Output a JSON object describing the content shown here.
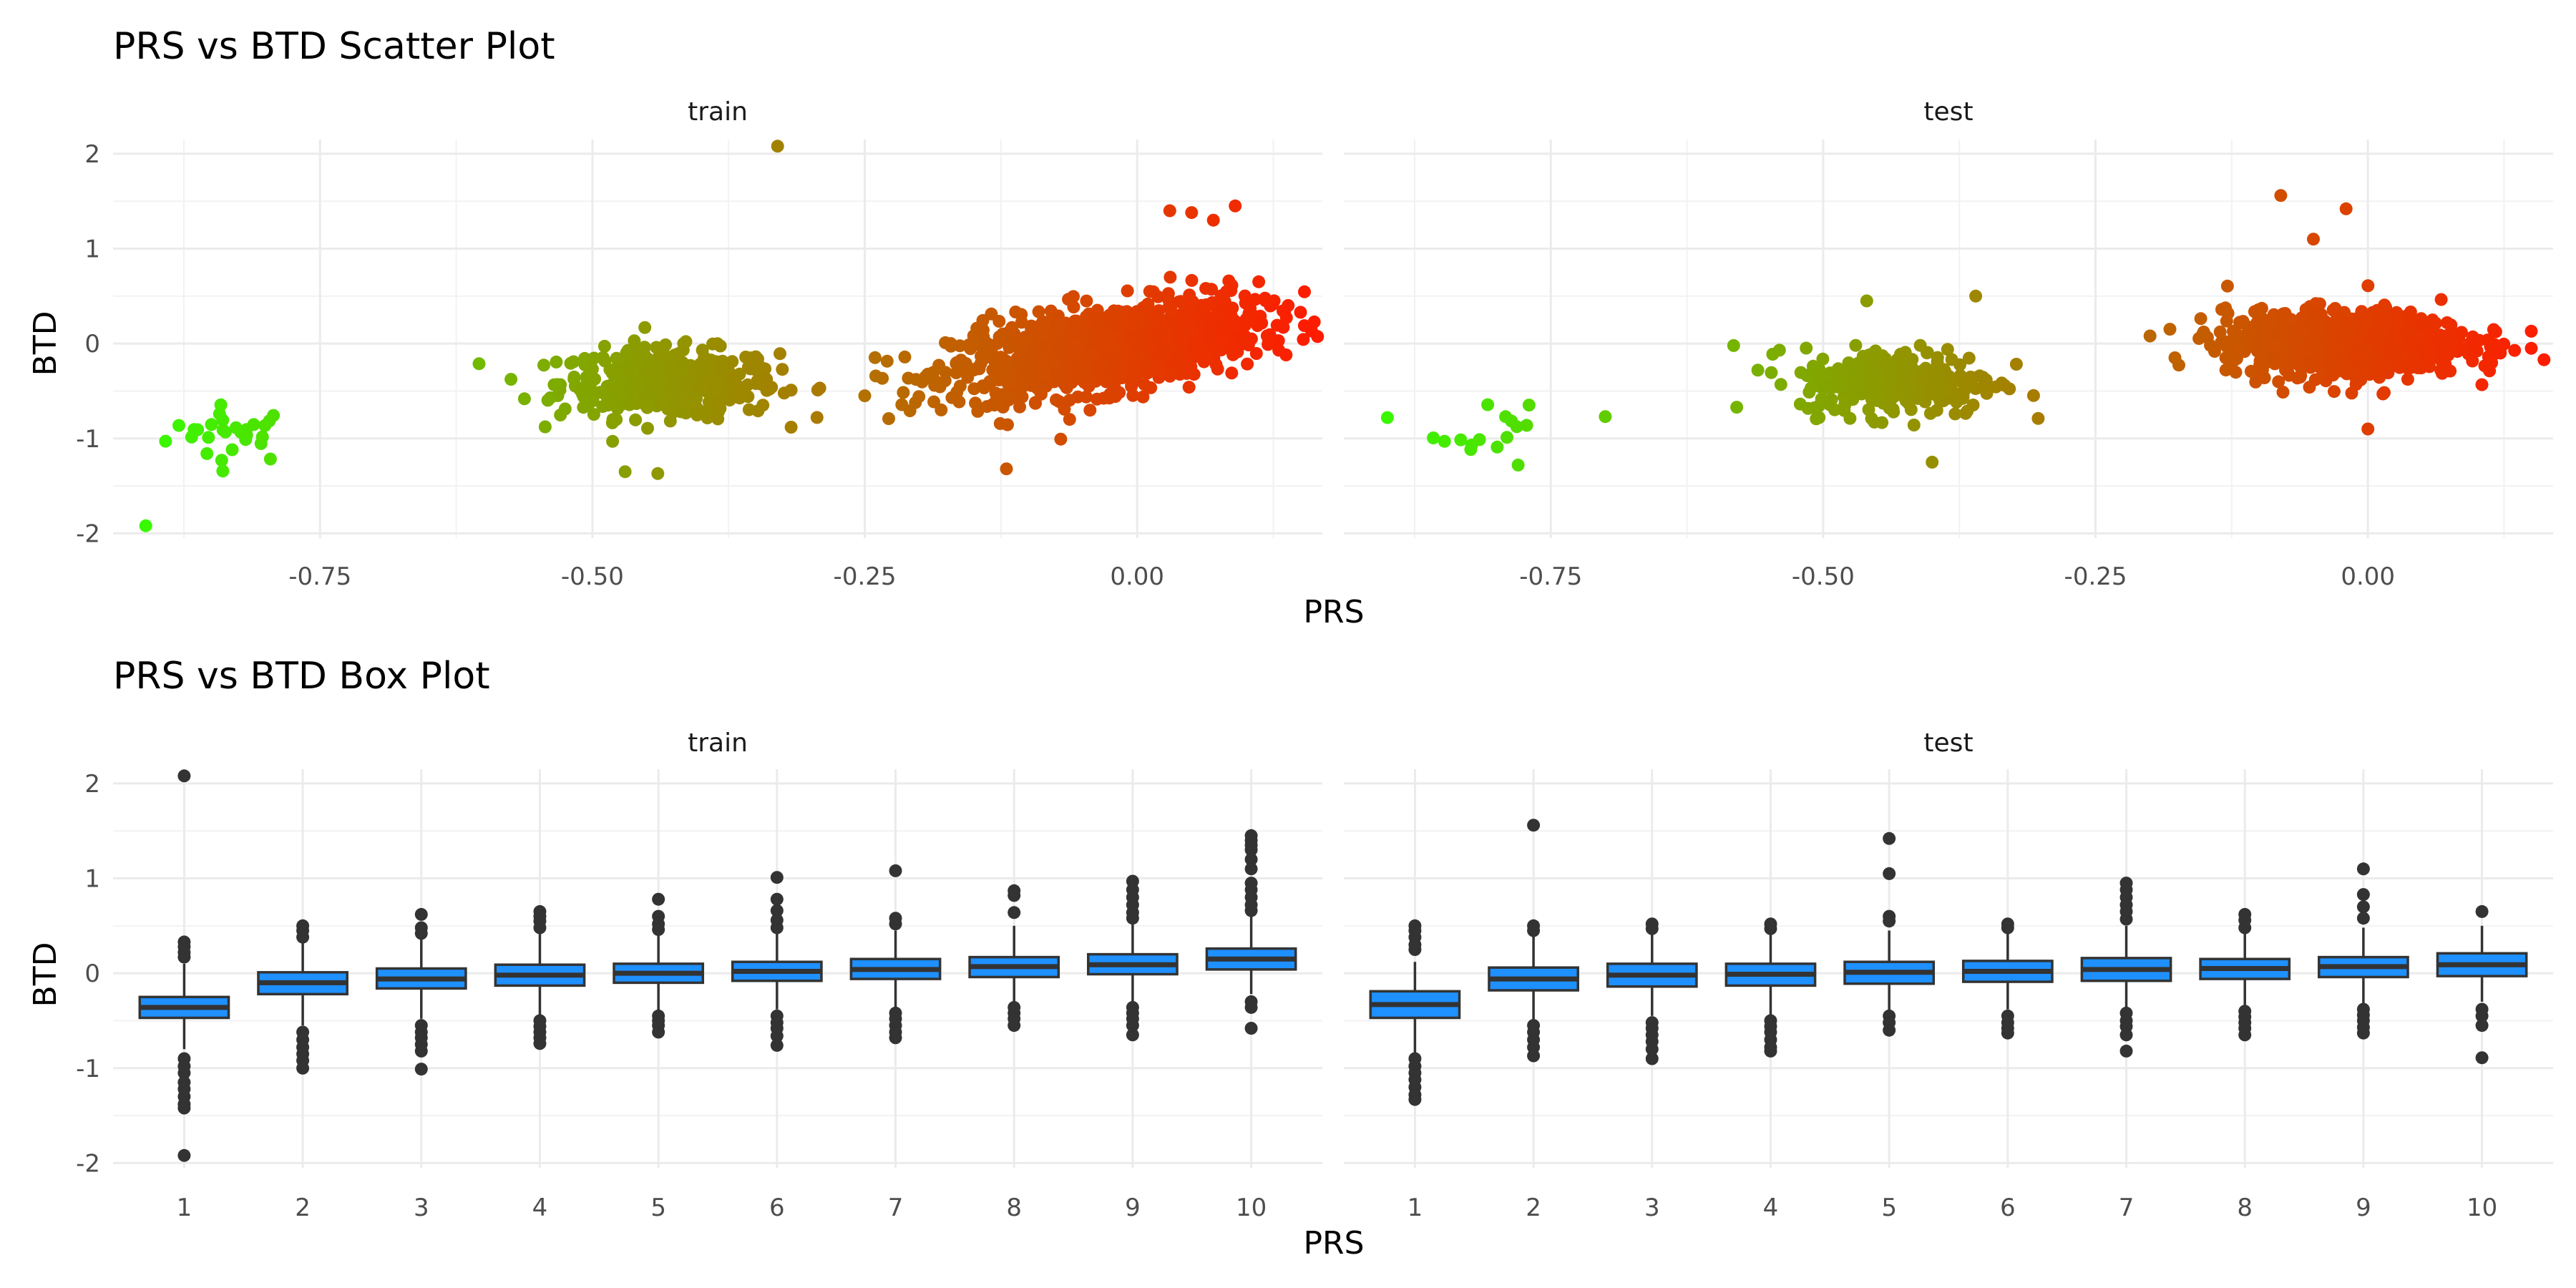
{
  "chart_data": [
    {
      "type": "scatter",
      "title": "PRS vs BTD Scatter Plot",
      "xlabel": "PRS",
      "ylabel": "BTD",
      "grid": true,
      "color_scale": {
        "low": "#33ff00",
        "high": "#ff1a00"
      },
      "xlim": [
        -0.94,
        0.17
      ],
      "ylim": [
        -2.05,
        2.15
      ],
      "x_ticks": [
        -0.75,
        -0.5,
        -0.25,
        0.0
      ],
      "x_tick_labels": [
        "-0.75",
        "-0.50",
        "-0.25",
        "0.00"
      ],
      "y_ticks": [
        -2,
        -1,
        0,
        1,
        2
      ],
      "y_tick_labels": [
        "-2",
        "-1",
        "0",
        "1",
        "2"
      ],
      "panels": [
        {
          "name": "train",
          "clusters": [
            {
              "cx": -0.83,
              "cy": -0.95,
              "sx": 0.03,
              "sy": 0.15,
              "n": 28
            },
            {
              "cx": -0.43,
              "cy": -0.42,
              "sx": 0.05,
              "sy": 0.18,
              "n": 420
            },
            {
              "cx": -0.03,
              "cy": -0.05,
              "sx": 0.07,
              "sy": 0.22,
              "n": 1100,
              "slope": 1.8
            }
          ],
          "outliers": [
            {
              "x": -0.91,
              "y": -1.92
            },
            {
              "x": -0.33,
              "y": 2.08
            },
            {
              "x": 0.09,
              "y": 1.45
            },
            {
              "x": 0.05,
              "y": 1.38
            },
            {
              "x": 0.03,
              "y": 1.4
            },
            {
              "x": 0.07,
              "y": 1.3
            },
            {
              "x": -0.12,
              "y": -1.32
            },
            {
              "x": -0.47,
              "y": -1.35
            },
            {
              "x": -0.44,
              "y": -1.37
            },
            {
              "x": 0.15,
              "y": 0.33
            },
            {
              "x": -0.25,
              "y": -0.55
            },
            {
              "x": 0.13,
              "y": -0.07
            }
          ]
        },
        {
          "name": "test",
          "clusters": [
            {
              "cx": -0.81,
              "cy": -0.95,
              "sx": 0.02,
              "sy": 0.15,
              "n": 14
            },
            {
              "cx": -0.43,
              "cy": -0.4,
              "sx": 0.045,
              "sy": 0.18,
              "n": 300
            },
            {
              "cx": -0.02,
              "cy": 0.0,
              "sx": 0.055,
              "sy": 0.17,
              "n": 900
            }
          ],
          "outliers": [
            {
              "x": -0.08,
              "y": 1.56
            },
            {
              "x": -0.02,
              "y": 1.42
            },
            {
              "x": -0.05,
              "y": 1.1
            },
            {
              "x": -0.9,
              "y": -0.78
            },
            {
              "x": -0.78,
              "y": -1.28
            },
            {
              "x": -0.7,
              "y": -0.77
            },
            {
              "x": -0.36,
              "y": 0.5
            },
            {
              "x": -0.46,
              "y": 0.45
            },
            {
              "x": -0.4,
              "y": -1.25
            },
            {
              "x": 0.15,
              "y": 0.13
            },
            {
              "x": 0.15,
              "y": -0.05
            },
            {
              "x": 0.0,
              "y": -0.9
            },
            {
              "x": -0.2,
              "y": 0.08
            },
            {
              "x": -0.56,
              "y": -0.28
            }
          ]
        }
      ]
    },
    {
      "type": "box",
      "title": "PRS vs BTD Box Plot",
      "xlabel": "PRS",
      "ylabel": "BTD",
      "grid": true,
      "box_color": "#1e90ff",
      "categories": [
        "1",
        "2",
        "3",
        "4",
        "5",
        "6",
        "7",
        "8",
        "9",
        "10"
      ],
      "ylim": [
        -2.05,
        2.15
      ],
      "y_ticks": [
        -2,
        -1,
        0,
        1,
        2
      ],
      "y_tick_labels": [
        "-2",
        "-1",
        "0",
        "1",
        "2"
      ],
      "panels": [
        {
          "name": "train",
          "boxes": [
            {
              "q1": -0.47,
              "median": -0.36,
              "q3": -0.25,
              "whislo": -0.8,
              "whishi": 0.1,
              "outliers": [
                2.08,
                0.33,
                0.28,
                0.22,
                0.17,
                -0.9,
                -0.98,
                -1.05,
                -1.15,
                -1.22,
                -1.3,
                -1.38,
                -1.42,
                -1.92
              ]
            },
            {
              "q1": -0.22,
              "median": -0.1,
              "q3": 0.01,
              "whislo": -0.55,
              "whishi": 0.35,
              "outliers": [
                0.5,
                0.45,
                0.38,
                -0.62,
                -0.7,
                -0.78,
                -0.85,
                -0.92,
                -1.0
              ]
            },
            {
              "q1": -0.16,
              "median": -0.06,
              "q3": 0.05,
              "whislo": -0.48,
              "whishi": 0.38,
              "outliers": [
                0.62,
                0.48,
                0.42,
                -0.55,
                -0.62,
                -0.68,
                -0.75,
                -0.82,
                -1.01
              ]
            },
            {
              "q1": -0.13,
              "median": -0.02,
              "q3": 0.09,
              "whislo": -0.45,
              "whishi": 0.42,
              "outliers": [
                0.65,
                0.6,
                0.55,
                0.48,
                -0.5,
                -0.56,
                -0.62,
                -0.68,
                -0.74
              ]
            },
            {
              "q1": -0.1,
              "median": 0.0,
              "q3": 0.1,
              "whislo": -0.4,
              "whishi": 0.4,
              "outliers": [
                0.78,
                0.6,
                0.52,
                0.46,
                -0.45,
                -0.5,
                -0.55,
                -0.62
              ]
            },
            {
              "q1": -0.08,
              "median": 0.02,
              "q3": 0.12,
              "whislo": -0.38,
              "whishi": 0.42,
              "outliers": [
                1.01,
                0.78,
                0.66,
                0.56,
                0.48,
                -0.45,
                -0.52,
                -0.58,
                -0.66,
                -0.76
              ]
            },
            {
              "q1": -0.06,
              "median": 0.04,
              "q3": 0.15,
              "whislo": -0.36,
              "whishi": 0.45,
              "outliers": [
                1.08,
                0.58,
                0.52,
                -0.42,
                -0.48,
                -0.55,
                -0.62,
                -0.68
              ]
            },
            {
              "q1": -0.04,
              "median": 0.07,
              "q3": 0.17,
              "whislo": -0.3,
              "whishi": 0.5,
              "outliers": [
                0.87,
                0.82,
                0.64,
                -0.36,
                -0.42,
                -0.48,
                -0.55
              ]
            },
            {
              "q1": -0.01,
              "median": 0.09,
              "q3": 0.2,
              "whislo": -0.3,
              "whishi": 0.52,
              "outliers": [
                0.97,
                0.88,
                0.8,
                0.72,
                0.64,
                0.58,
                -0.36,
                -0.42,
                -0.48,
                -0.55,
                -0.65
              ]
            },
            {
              "q1": 0.04,
              "median": 0.15,
              "q3": 0.26,
              "whislo": -0.22,
              "whishi": 0.6,
              "outliers": [
                1.45,
                1.4,
                1.35,
                1.3,
                1.2,
                1.1,
                0.95,
                0.88,
                0.8,
                0.72,
                0.66,
                -0.3,
                -0.36,
                -0.58
              ]
            }
          ]
        },
        {
          "name": "test",
          "boxes": [
            {
              "q1": -0.47,
              "median": -0.33,
              "q3": -0.19,
              "whislo": -0.85,
              "whishi": 0.12,
              "outliers": [
                0.5,
                0.45,
                0.38,
                0.3,
                0.25,
                -0.9,
                -0.98,
                -1.05,
                -1.12,
                -1.2,
                -1.28,
                -1.33
              ]
            },
            {
              "q1": -0.18,
              "median": -0.06,
              "q3": 0.06,
              "whislo": -0.5,
              "whishi": 0.4,
              "outliers": [
                1.56,
                0.5,
                0.45,
                -0.55,
                -0.62,
                -0.7,
                -0.78,
                -0.87
              ]
            },
            {
              "q1": -0.14,
              "median": -0.02,
              "q3": 0.1,
              "whislo": -0.45,
              "whishi": 0.42,
              "outliers": [
                0.52,
                0.47,
                -0.52,
                -0.58,
                -0.65,
                -0.72,
                -0.8,
                -0.9
              ]
            },
            {
              "q1": -0.13,
              "median": -0.01,
              "q3": 0.1,
              "whislo": -0.45,
              "whishi": 0.42,
              "outliers": [
                0.52,
                0.47,
                -0.5,
                -0.56,
                -0.62,
                -0.7,
                -0.78,
                -0.82
              ]
            },
            {
              "q1": -0.11,
              "median": 0.01,
              "q3": 0.12,
              "whislo": -0.4,
              "whishi": 0.45,
              "outliers": [
                1.42,
                1.05,
                0.6,
                0.55,
                -0.45,
                -0.52,
                -0.6
              ]
            },
            {
              "q1": -0.09,
              "median": 0.02,
              "q3": 0.13,
              "whislo": -0.38,
              "whishi": 0.45,
              "outliers": [
                0.52,
                0.48,
                -0.45,
                -0.52,
                -0.58,
                -0.63
              ]
            },
            {
              "q1": -0.08,
              "median": 0.04,
              "q3": 0.16,
              "whislo": -0.38,
              "whishi": 0.5,
              "outliers": [
                0.95,
                0.88,
                0.8,
                0.72,
                0.65,
                0.57,
                -0.42,
                -0.5,
                -0.56,
                -0.65,
                -0.82
              ]
            },
            {
              "q1": -0.06,
              "median": 0.05,
              "q3": 0.15,
              "whislo": -0.36,
              "whishi": 0.45,
              "outliers": [
                0.62,
                0.56,
                0.48,
                -0.4,
                -0.46,
                -0.52,
                -0.58,
                -0.65
              ]
            },
            {
              "q1": -0.04,
              "median": 0.07,
              "q3": 0.17,
              "whislo": -0.34,
              "whishi": 0.48,
              "outliers": [
                1.1,
                0.83,
                0.7,
                0.58,
                -0.38,
                -0.44,
                -0.5,
                -0.57,
                -0.63
              ]
            },
            {
              "q1": -0.03,
              "median": 0.09,
              "q3": 0.21,
              "whislo": -0.3,
              "whishi": 0.5,
              "outliers": [
                0.65,
                -0.38,
                -0.45,
                -0.55,
                -0.89
              ]
            }
          ]
        }
      ]
    }
  ]
}
